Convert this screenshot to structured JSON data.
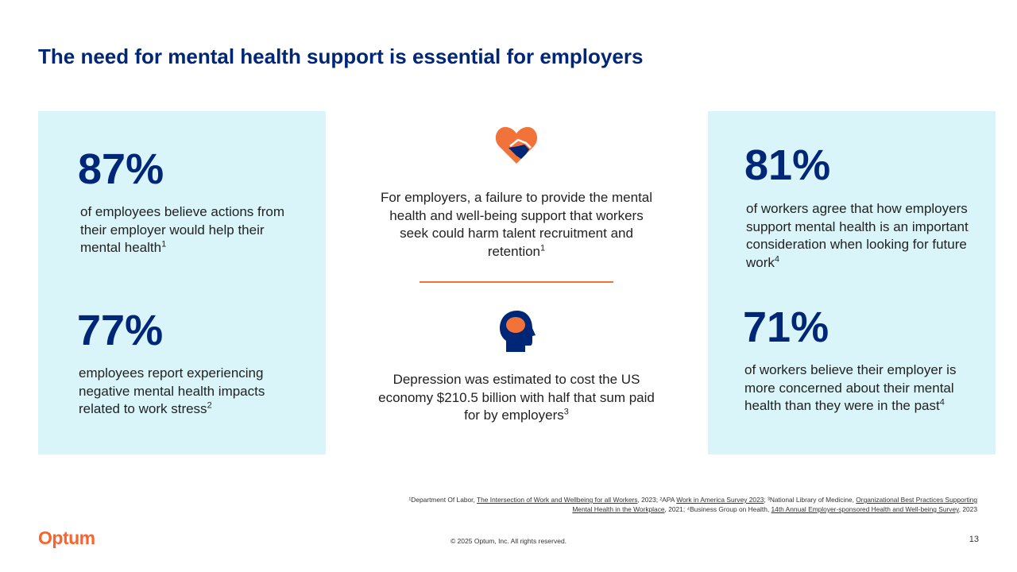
{
  "header": {
    "title": "The need for mental health support is essential for employers"
  },
  "left_panel": [
    {
      "stat": "87%",
      "text": "of employees believe actions from their employer would help their mental health",
      "sup": "1"
    },
    {
      "stat": "77%",
      "text": "employees report experiencing negative mental health impacts related to work stress",
      "sup": "2"
    }
  ],
  "center_panel": [
    {
      "text": "For employers, a failure to provide the mental health and well-being support that workers seek could harm talent recruitment and retention",
      "sup": "1"
    },
    {
      "text": "Depression was estimated to cost the US economy $210.5 billion with half that sum paid for by employers",
      "sup": "3"
    }
  ],
  "right_panel": [
    {
      "stat": "81%",
      "text": "of workers agree that how employers support mental health is an important consideration when looking for future work",
      "sup": "4"
    },
    {
      "stat": "71%",
      "text": "of workers believe their employer is more concerned about their mental health than they were in the past",
      "sup": "4"
    }
  ],
  "footnote": [
    {
      "text": "¹Department Of Labor, "
    },
    {
      "text": "The Intersection of Work and Wellbeing for all Workers",
      "underlined": true
    },
    {
      "text": ", 2023; ²APA "
    },
    {
      "text": "Work in America Survey 2023",
      "underlined": true
    },
    {
      "text": "; ³National Library of Medicine, "
    },
    {
      "text": "Organizational Best Practices Supporting Mental Health in the Workplace",
      "underlined": true
    },
    {
      "text": ", 2021; ⁴Business Group on Health, "
    },
    {
      "text": "14th Annual Employer-sponsored Health and Well-being Survey",
      "underlined": true
    },
    {
      "text": ", 2023"
    }
  ],
  "footer": {
    "logo": "Optum",
    "copyright": "© 2025 Optum, Inc. All rights reserved.",
    "page_number": "13"
  }
}
